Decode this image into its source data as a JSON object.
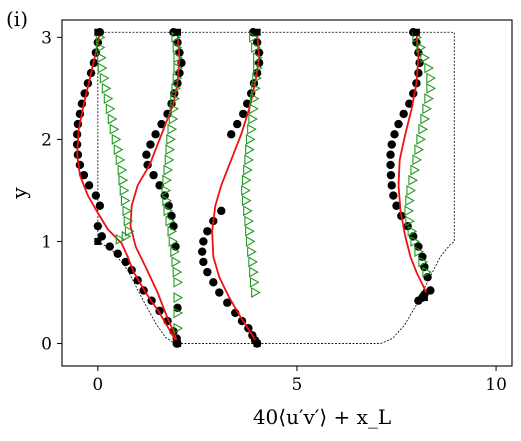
{
  "panel_label": "(i)",
  "chart_data": {
    "type": "scatter",
    "title": "",
    "xlabel": "40⟨u′v′⟩ + x_L",
    "ylabel": "y",
    "xlim": [
      -0.9,
      10.4
    ],
    "ylim": [
      -0.22,
      3.17
    ],
    "xticks": [
      0,
      5,
      10
    ],
    "yticks": [
      0,
      1,
      2,
      3
    ],
    "grid": false,
    "legend": "none",
    "colors": {
      "markers": "#000000",
      "line": "#ee1111",
      "triangles": "#229922",
      "boundary": "#000000"
    },
    "boundary_outline": {
      "x": [
        0,
        0.35,
        0.75,
        1.1,
        1.45,
        1.7,
        1.9,
        2.0,
        7.1,
        7.4,
        7.7,
        8.0,
        8.3,
        8.6,
        8.85,
        8.95,
        8.95,
        0,
        0
      ],
      "y": [
        1.0,
        0.92,
        0.72,
        0.45,
        0.2,
        0.06,
        0.01,
        0.0,
        0.0,
        0.05,
        0.18,
        0.38,
        0.62,
        0.85,
        0.97,
        1.0,
        3.05,
        3.05,
        1.0
      ]
    },
    "series": [
      {
        "marker": "circle",
        "x": [
          0.05,
          0.0,
          -0.05,
          -0.1,
          -0.17,
          -0.25,
          -0.33,
          -0.4,
          -0.45,
          -0.5,
          -0.52,
          -0.52,
          -0.5,
          -0.45,
          -0.35,
          -0.22,
          -0.05,
          0.05,
          0.0,
          0.1,
          0.3,
          0.5,
          0.7,
          0.85,
          1.0,
          1.15,
          1.35,
          1.55,
          1.75,
          1.9,
          1.98,
          2.0,
          1.9,
          2.0,
          2.05,
          2.1,
          2.05,
          2.0,
          1.92,
          1.85,
          1.75,
          1.6,
          1.45,
          1.32,
          1.22,
          1.25,
          1.4,
          1.55,
          1.68,
          1.78,
          1.85,
          1.9,
          1.95,
          2.0,
          1.98,
          3.9,
          4.0,
          4.05,
          4.05,
          4.0,
          3.92,
          3.85,
          3.75,
          3.65,
          3.5,
          3.35,
          3.1,
          2.9,
          2.75,
          2.65,
          2.62,
          2.65,
          2.75,
          2.9,
          3.05,
          3.25,
          3.45,
          3.62,
          3.78,
          3.88,
          3.95,
          4.0,
          7.92,
          8.0,
          8.05,
          8.08,
          8.05,
          8.0,
          7.92,
          7.82,
          7.68,
          7.55,
          7.45,
          7.38,
          7.35,
          7.35,
          7.36,
          7.38,
          7.42,
          7.5,
          7.62,
          7.78,
          7.92,
          8.05,
          8.15,
          8.2,
          8.28,
          8.35,
          8.2,
          8.15,
          8.05
        ],
        "y": [
          3.05,
          2.95,
          2.85,
          2.75,
          2.65,
          2.55,
          2.45,
          2.35,
          2.25,
          2.15,
          2.05,
          1.95,
          1.85,
          1.75,
          1.65,
          1.55,
          1.45,
          1.35,
          1.15,
          1.05,
          0.95,
          0.88,
          0.8,
          0.72,
          0.62,
          0.52,
          0.42,
          0.32,
          0.22,
          0.12,
          0.05,
          0.0,
          3.05,
          2.95,
          2.85,
          2.75,
          2.65,
          2.55,
          2.45,
          2.35,
          2.25,
          2.15,
          2.05,
          1.95,
          1.85,
          1.75,
          1.65,
          1.55,
          1.45,
          1.35,
          1.25,
          1.15,
          0.95,
          0.35,
          0.0,
          3.05,
          2.95,
          2.85,
          2.75,
          2.65,
          2.55,
          2.45,
          2.35,
          2.25,
          2.15,
          2.05,
          1.3,
          1.2,
          1.1,
          1.0,
          0.9,
          0.8,
          0.7,
          0.6,
          0.5,
          0.4,
          0.3,
          0.22,
          0.15,
          0.08,
          0.03,
          0.0,
          3.05,
          2.95,
          2.85,
          2.75,
          2.65,
          2.55,
          2.45,
          2.35,
          2.25,
          2.15,
          2.05,
          1.95,
          1.85,
          1.75,
          1.65,
          1.55,
          1.45,
          1.35,
          1.25,
          1.15,
          1.05,
          0.95,
          0.85,
          0.75,
          0.65,
          0.52,
          0.48,
          0.45,
          0.42
        ]
      },
      {
        "marker": "line",
        "segments": [
          {
            "x": [
              0.05,
              -0.05,
              -0.2,
              -0.35,
              -0.48,
              -0.52,
              -0.45,
              -0.25,
              0.0,
              0.25,
              0.6,
              0.75,
              0.9,
              1.2,
              1.55,
              1.85,
              2.0
            ],
            "y": [
              3.05,
              2.85,
              2.6,
              2.35,
              2.1,
              1.85,
              1.65,
              1.45,
              1.28,
              1.12,
              0.98,
              0.85,
              0.7,
              0.5,
              0.3,
              0.1,
              0.0
            ]
          },
          {
            "x": [
              2.0,
              2.05,
              2.0,
              1.9,
              1.7,
              1.5,
              1.3,
              1.0,
              0.85,
              0.82,
              0.95,
              1.2,
              1.5,
              1.75,
              1.92,
              2.0
            ],
            "y": [
              3.05,
              2.8,
              2.55,
              2.35,
              2.15,
              1.95,
              1.75,
              1.55,
              1.35,
              1.15,
              0.95,
              0.75,
              0.5,
              0.25,
              0.1,
              0.0
            ]
          },
          {
            "x": [
              4.0,
              4.05,
              3.95,
              3.8,
              3.6,
              3.35,
              3.1,
              2.95,
              2.87,
              2.9,
              3.05,
              3.3,
              3.6,
              3.85,
              4.0
            ],
            "y": [
              3.05,
              2.8,
              2.55,
              2.3,
              2.05,
              1.8,
              1.55,
              1.35,
              1.1,
              0.85,
              0.65,
              0.45,
              0.25,
              0.1,
              0.0
            ]
          },
          {
            "x": [
              8.0,
              8.05,
              8.0,
              7.88,
              7.72,
              7.58,
              7.55,
              7.6,
              7.72,
              7.85,
              8.0,
              8.15,
              8.25
            ],
            "y": [
              3.05,
              2.8,
              2.55,
              2.3,
              2.05,
              1.8,
              1.55,
              1.3,
              1.05,
              0.85,
              0.7,
              0.58,
              0.5
            ]
          }
        ]
      },
      {
        "marker": "triangle-right",
        "x": [
          0.05,
          0.05,
          0.08,
          0.1,
          0.15,
          0.2,
          0.25,
          0.3,
          0.35,
          0.4,
          0.45,
          0.5,
          0.55,
          0.6,
          0.62,
          0.65,
          0.68,
          0.72,
          0.75,
          0.78,
          0.7,
          0.55,
          1.95,
          1.98,
          2.0,
          2.0,
          1.98,
          1.95,
          1.92,
          1.9,
          1.88,
          1.85,
          1.82,
          1.8,
          1.78,
          1.75,
          1.72,
          1.7,
          1.72,
          1.75,
          1.8,
          1.85,
          1.88,
          1.92,
          1.95,
          1.98,
          2.0,
          2.0,
          2.0,
          2.0,
          3.9,
          3.95,
          4.0,
          4.0,
          3.98,
          3.95,
          3.92,
          3.9,
          3.88,
          3.85,
          3.82,
          3.8,
          3.78,
          3.75,
          3.72,
          3.7,
          3.72,
          3.75,
          3.78,
          3.8,
          3.82,
          3.85,
          3.88,
          3.9,
          3.92,
          3.95,
          8.0,
          8.1,
          8.2,
          8.3,
          8.35,
          8.35,
          8.3,
          8.25,
          8.2,
          8.15,
          8.1,
          8.05,
          8.0,
          7.95,
          7.9,
          7.85,
          7.82,
          7.8,
          7.82,
          7.88,
          7.95,
          8.05,
          8.15,
          8.25
        ],
        "y": [
          3.0,
          2.9,
          2.8,
          2.7,
          2.6,
          2.5,
          2.4,
          2.3,
          2.2,
          2.1,
          2.0,
          1.9,
          1.8,
          1.7,
          1.6,
          1.5,
          1.4,
          1.3,
          1.2,
          1.1,
          1.05,
          1.02,
          3.0,
          2.9,
          2.8,
          2.7,
          2.6,
          2.5,
          2.4,
          2.3,
          2.2,
          2.1,
          2.0,
          1.9,
          1.8,
          1.7,
          1.6,
          1.5,
          1.4,
          1.3,
          1.2,
          1.1,
          1.0,
          0.9,
          0.8,
          0.7,
          0.6,
          0.45,
          0.3,
          0.15,
          3.0,
          2.9,
          2.8,
          2.7,
          2.6,
          2.5,
          2.4,
          2.3,
          2.2,
          2.1,
          2.0,
          1.9,
          1.8,
          1.7,
          1.6,
          1.5,
          1.4,
          1.3,
          1.2,
          1.1,
          1.0,
          0.9,
          0.8,
          0.7,
          0.6,
          0.5,
          3.0,
          2.9,
          2.8,
          2.7,
          2.6,
          2.5,
          2.4,
          2.3,
          2.2,
          2.1,
          2.0,
          1.9,
          1.8,
          1.7,
          1.6,
          1.5,
          1.4,
          1.3,
          1.2,
          1.1,
          1.0,
          0.9,
          0.8,
          0.7
        ]
      },
      {
        "marker": "square",
        "x": [
          0.0,
          2.0,
          4.0,
          8.0,
          0.0,
          2.0,
          4.0,
          8.2
        ],
        "y": [
          3.05,
          3.05,
          3.05,
          3.05,
          1.0,
          0.0,
          0.0,
          0.45
        ]
      }
    ]
  }
}
